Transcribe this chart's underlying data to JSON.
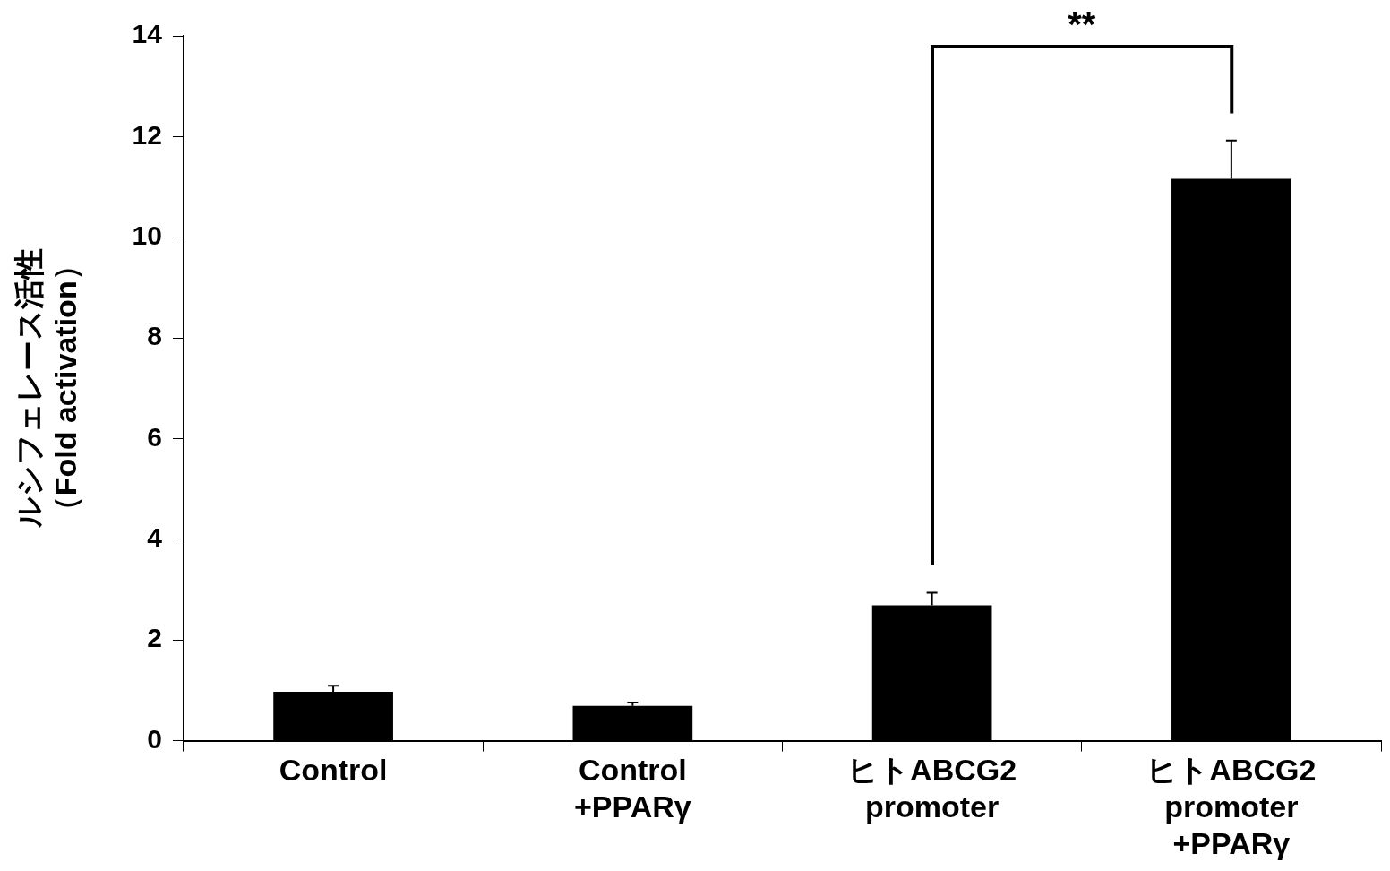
{
  "chart_data": {
    "type": "bar",
    "categories": [
      "Control",
      "Control\n+PPARγ",
      "ヒトABCG2\npromoter",
      "ヒトABCG2\npromoter\n+PPARγ"
    ],
    "values": [
      0.97,
      0.69,
      2.69,
      11.16
    ],
    "errors": [
      0.12,
      0.07,
      0.25,
      0.76
    ],
    "color": "#000000",
    "ylabel": "ルシフェレース活性（Fold activation）",
    "ylim": [
      0,
      14
    ],
    "yticks": [
      0,
      2,
      4,
      6,
      8,
      10,
      12,
      14
    ],
    "annotations": [
      "**"
    ],
    "grid": false,
    "legend": false
  }
}
